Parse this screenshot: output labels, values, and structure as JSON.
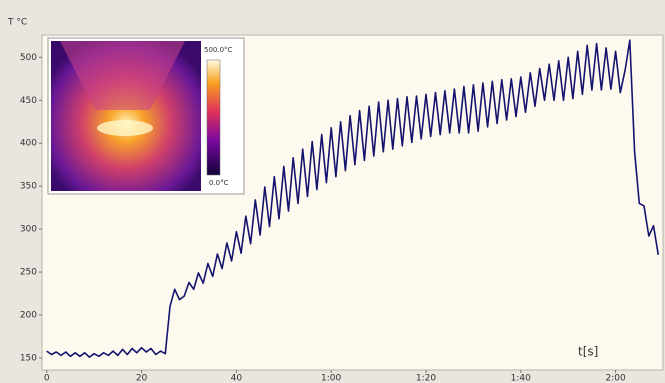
{
  "chart_data": {
    "type": "line",
    "y_label": "T °C",
    "x_label": "t[s]",
    "annotations": [
      "500.0°C",
      "0.0°C"
    ],
    "color": "#14146e",
    "x": [
      0,
      1,
      2,
      3,
      4,
      5,
      6,
      7,
      8,
      9,
      10,
      11,
      12,
      13,
      14,
      15,
      16,
      17,
      18,
      19,
      20,
      21,
      22,
      23,
      24,
      25,
      26,
      27,
      28,
      29,
      30,
      31,
      32,
      33,
      34,
      35,
      36,
      37,
      38,
      39,
      40,
      41,
      42,
      43,
      44,
      45,
      46,
      47,
      48,
      49,
      50,
      51,
      52,
      53,
      54,
      55,
      56,
      57,
      58,
      59,
      60,
      61,
      62,
      63,
      64,
      65,
      66,
      67,
      68,
      69,
      70,
      71,
      72,
      73,
      74,
      75,
      76,
      77,
      78,
      79,
      80,
      81,
      82,
      83,
      84,
      85,
      86,
      87,
      88,
      89,
      90,
      91,
      92,
      93,
      94,
      95,
      96,
      97,
      98,
      99,
      100,
      101,
      102,
      103,
      104,
      105,
      106,
      107,
      108,
      109,
      110,
      111,
      112,
      113,
      114,
      115,
      116,
      117,
      118,
      119,
      120,
      121,
      122,
      123,
      124,
      125,
      126,
      127,
      128,
      129
    ],
    "values": [
      158,
      154,
      157,
      153,
      157,
      152,
      156,
      152,
      156,
      151,
      155,
      152,
      156,
      153,
      158,
      153,
      160,
      154,
      161,
      156,
      162,
      157,
      161,
      154,
      158,
      155,
      210,
      230,
      218,
      222,
      238,
      230,
      249,
      237,
      260,
      245,
      271,
      254,
      284,
      263,
      297,
      272,
      315,
      283,
      334,
      293,
      349,
      303,
      361,
      312,
      373,
      321,
      383,
      330,
      393,
      338,
      402,
      346,
      410,
      354,
      418,
      361,
      425,
      368,
      432,
      375,
      438,
      380,
      443,
      385,
      448,
      390,
      450,
      393,
      452,
      397,
      454,
      401,
      455,
      405,
      457,
      408,
      459,
      410,
      461,
      412,
      463,
      412,
      466,
      412,
      468,
      414,
      470,
      419,
      472,
      423,
      474,
      427,
      475,
      431,
      477,
      436,
      482,
      443,
      487,
      450,
      492,
      450,
      496,
      450,
      500,
      452,
      507,
      457,
      514,
      462,
      516,
      462,
      511,
      463,
      507,
      459,
      485,
      520,
      390,
      330,
      327,
      292,
      304,
      270
    ],
    "xlim": [
      -1,
      130
    ],
    "ylim": [
      136,
      526
    ],
    "xticks": [
      0,
      20,
      40,
      {
        "value": 60,
        "label": "1:00"
      },
      {
        "value": 80,
        "label": "1:20"
      },
      {
        "value": 100,
        "label": "1:40"
      },
      {
        "value": 120,
        "label": "2:00"
      }
    ],
    "yticks": [
      150,
      200,
      250,
      300,
      350,
      400,
      450,
      500
    ],
    "grid": false
  }
}
